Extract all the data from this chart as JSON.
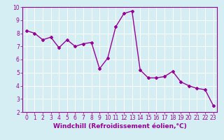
{
  "x": [
    0,
    1,
    2,
    3,
    4,
    5,
    6,
    7,
    8,
    9,
    10,
    11,
    12,
    13,
    14,
    15,
    16,
    17,
    18,
    19,
    20,
    21,
    22,
    23
  ],
  "y": [
    8.2,
    8.0,
    7.5,
    7.7,
    6.9,
    7.5,
    7.0,
    7.2,
    7.3,
    5.3,
    6.1,
    8.5,
    9.5,
    9.7,
    5.2,
    4.6,
    4.6,
    4.7,
    5.1,
    4.3,
    4.0,
    3.8,
    3.7,
    2.5
  ],
  "line_color": "#990099",
  "marker": "D",
  "marker_size": 2.0,
  "linewidth": 1.0,
  "xlabel": "Windchill (Refroidissement éolien,°C)",
  "xlabel_fontsize": 6.5,
  "bg_color": "#d4eef4",
  "grid_color": "#ffffff",
  "tick_color": "#990099",
  "label_color": "#990099",
  "ylim": [
    2,
    10
  ],
  "xlim": [
    -0.5,
    23.5
  ],
  "yticks": [
    2,
    3,
    4,
    5,
    6,
    7,
    8,
    9,
    10
  ],
  "xticks": [
    0,
    1,
    2,
    3,
    4,
    5,
    6,
    7,
    8,
    9,
    10,
    11,
    12,
    13,
    14,
    15,
    16,
    17,
    18,
    19,
    20,
    21,
    22,
    23
  ],
  "tick_fontsize": 5.5
}
